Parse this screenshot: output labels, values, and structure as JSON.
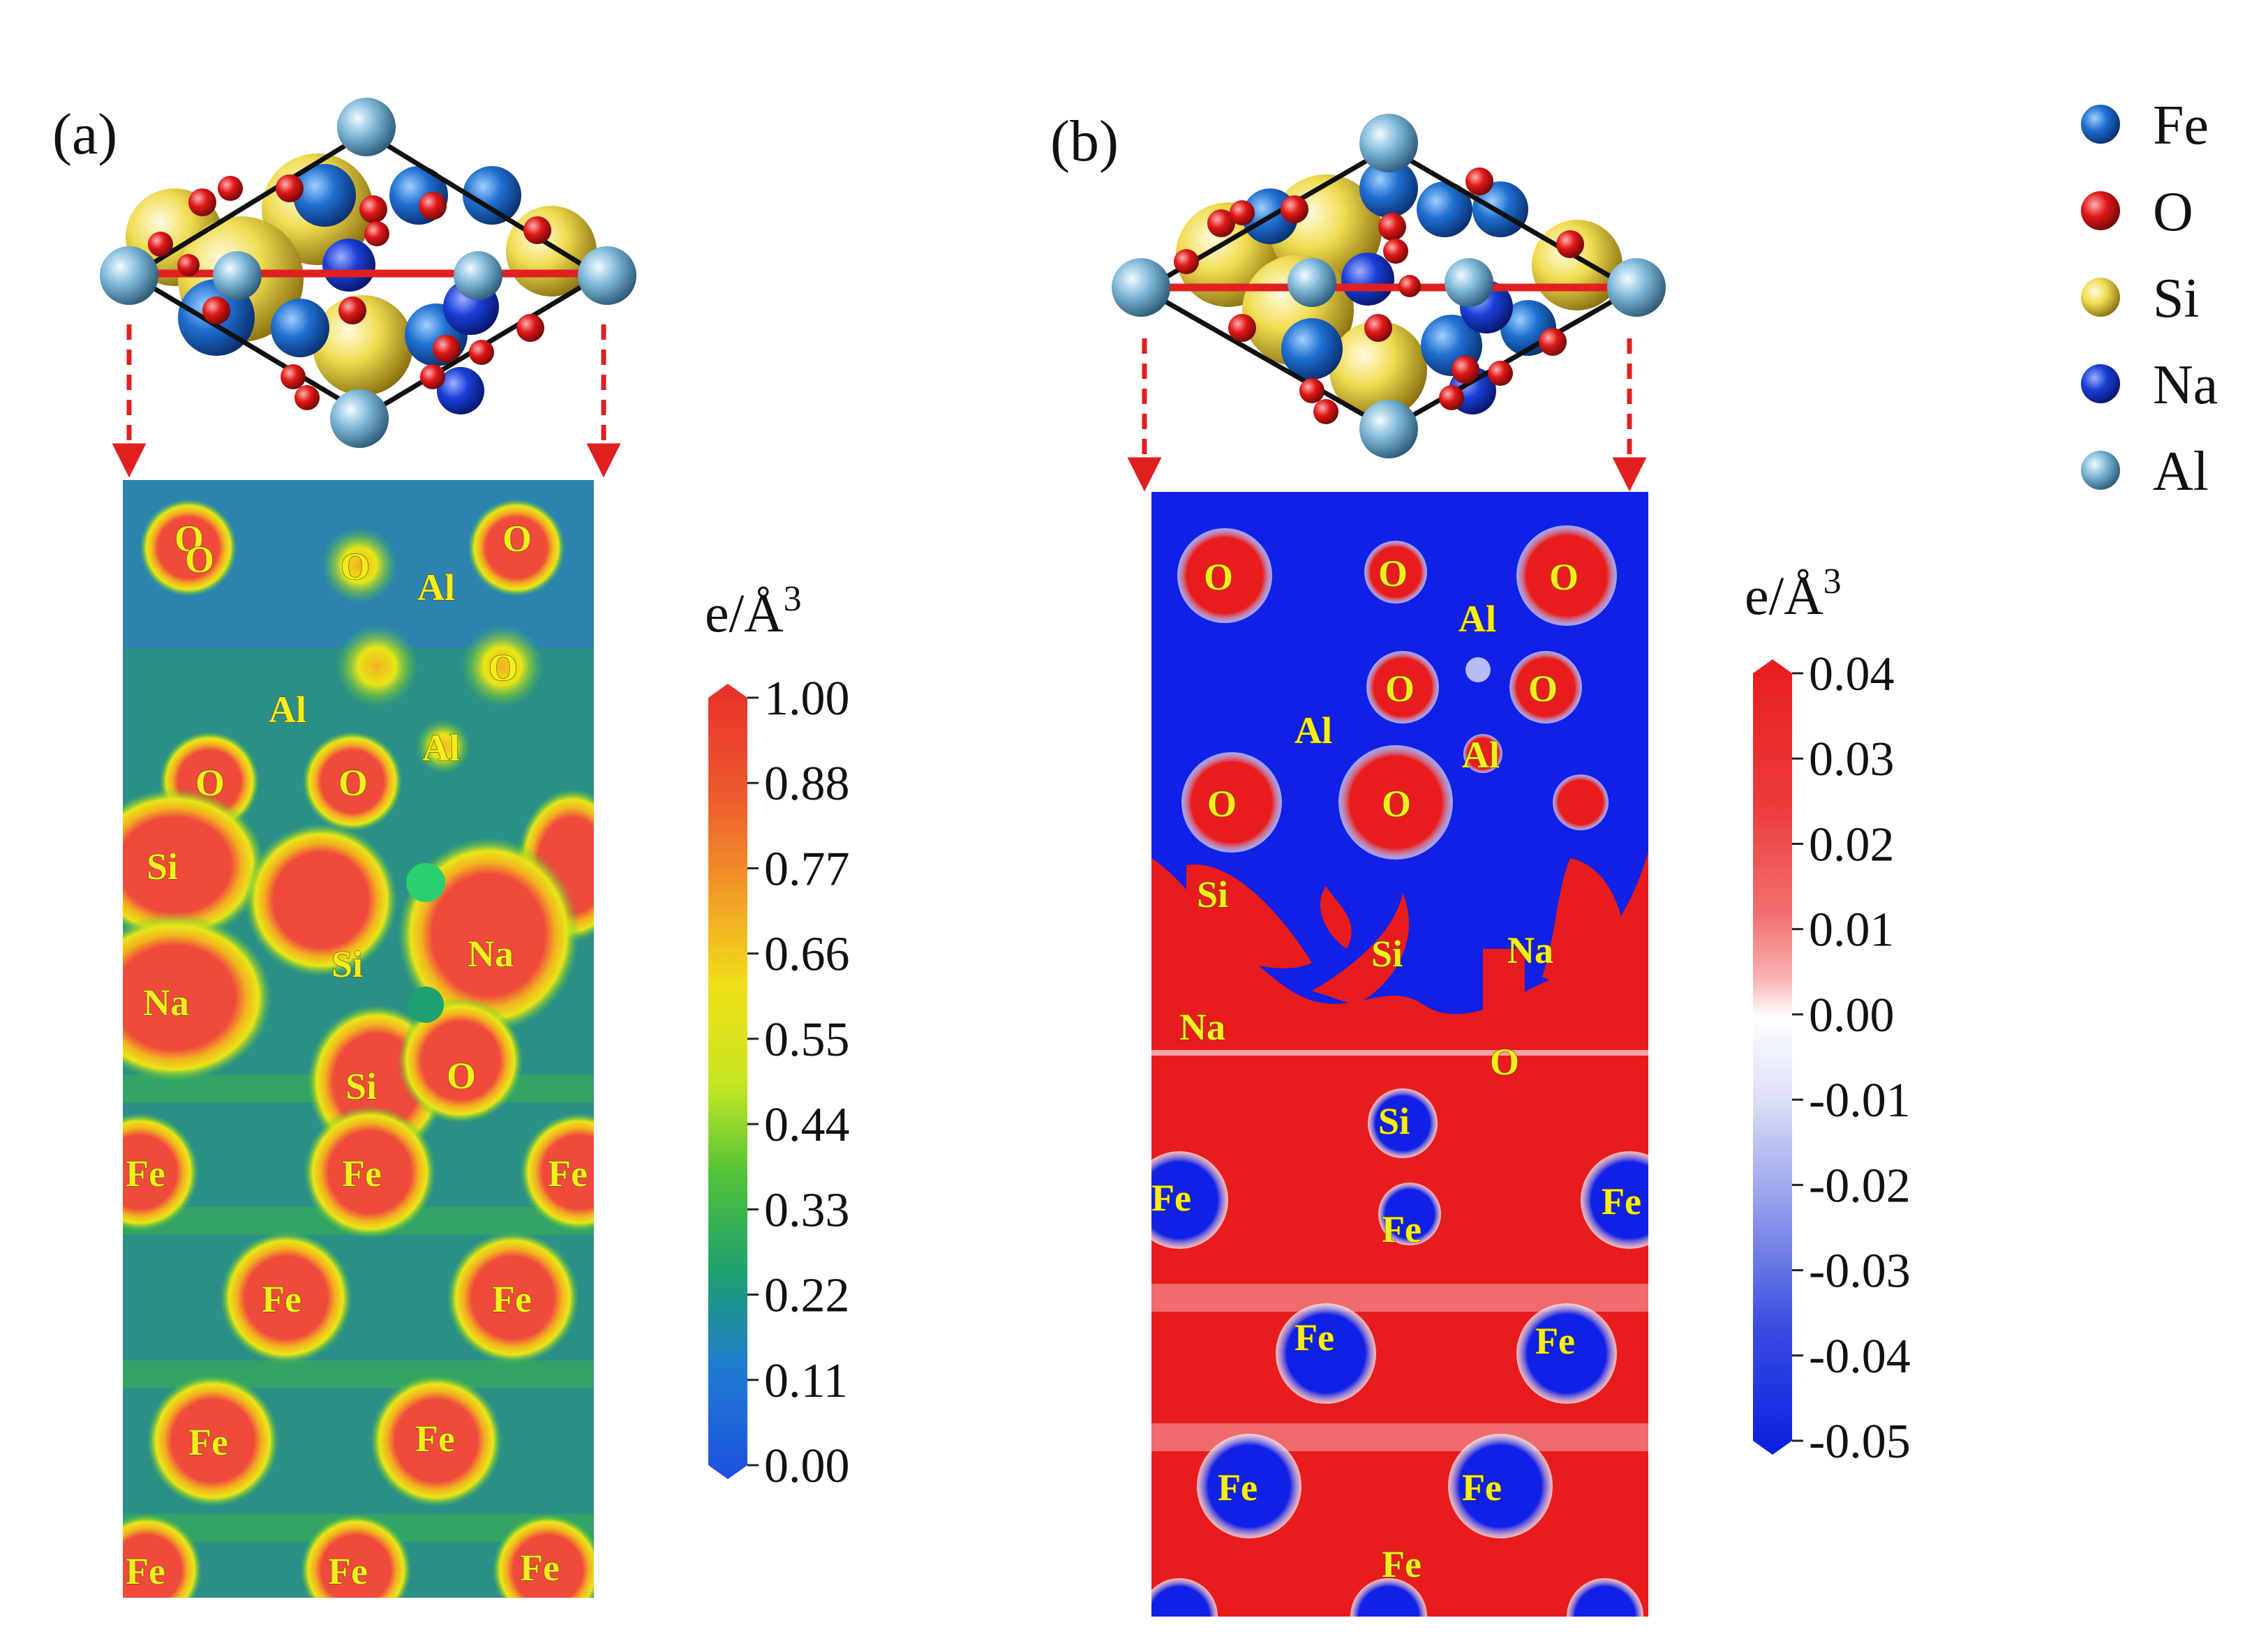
{
  "panels": [
    {
      "id": "a",
      "label": "(a)",
      "colorbar": {
        "unit_base": "e/Å",
        "unit_exp": "3",
        "ticks": [
          "1.00",
          "0.88",
          "0.77",
          "0.66",
          "0.55",
          "0.44",
          "0.33",
          "0.22",
          "0.11",
          "0.00"
        ],
        "colors": [
          "#e8302c",
          "#ec5a2e",
          "#f08c2a",
          "#f2c21e",
          "#e8e617",
          "#a8e02a",
          "#3fc23a",
          "#1ea070",
          "#1e7bd0",
          "#1e4fe0"
        ]
      },
      "map_background": "#2f9a8c",
      "atom_labels": [
        "O",
        "O",
        "O",
        "O",
        "Al",
        "O",
        "Al",
        "Al",
        "O",
        "O",
        "Si",
        "Si",
        "Na",
        "Na",
        "Si",
        "O",
        "Fe",
        "Fe",
        "Fe",
        "Fe",
        "Fe",
        "Fe",
        "Fe",
        "Fe",
        "Fe",
        "Fe"
      ]
    },
    {
      "id": "b",
      "label": "(b)",
      "colorbar": {
        "unit_base": "e/Å",
        "unit_exp": "3",
        "ticks": [
          "0.04",
          "0.03",
          "0.02",
          "0.01",
          "0.00",
          "-0.01",
          "-0.02",
          "-0.03",
          "-0.04",
          "-0.05"
        ],
        "colors": [
          "#e81c1c",
          "#ec3a3a",
          "#f06262",
          "#f48c8c",
          "#fad0d0",
          "#ffffff",
          "#d8dcf6",
          "#a8b0ee",
          "#6a78e6",
          "#2a3ee0",
          "#0a1ee0"
        ]
      },
      "map_background": "#1020e6",
      "atom_labels": [
        "O",
        "O",
        "O",
        "Al",
        "O",
        "O",
        "Al",
        "Al",
        "O",
        "O",
        "Si",
        "Si",
        "Na",
        "Na",
        "O",
        "Si",
        "Fe",
        "Fe",
        "Fe",
        "Fe",
        "Fe",
        "Fe",
        "Fe",
        "Fe"
      ]
    }
  ],
  "legend": [
    {
      "label": "Fe",
      "color": "#1f6fd0"
    },
    {
      "label": "O",
      "color": "#e01818"
    },
    {
      "label": "Si",
      "color": "#f0dc50"
    },
    {
      "label": "Na",
      "color": "#1a3fd8"
    },
    {
      "label": "Al",
      "color": "#7fb8d8"
    }
  ]
}
